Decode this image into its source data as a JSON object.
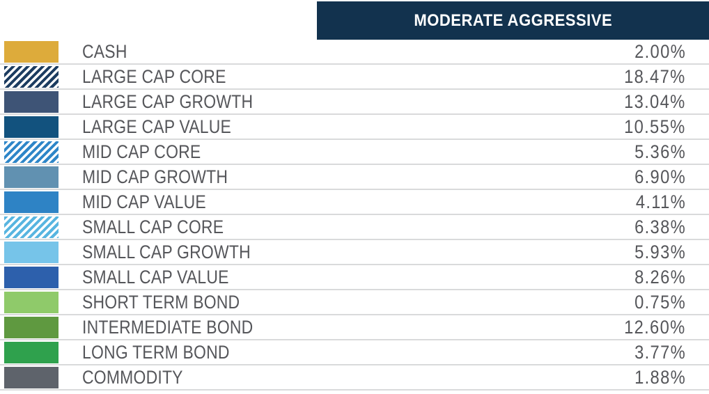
{
  "header": {
    "title": "MODERATE AGGRESSIVE",
    "background_color": "#12324e",
    "text_color": "#ffffff"
  },
  "table": {
    "separator_color": "#d9dadb",
    "text_color": "#55565a",
    "rows": [
      {
        "label": "CASH",
        "value": "2.00%",
        "swatch": "solid",
        "color": "#ddab3b"
      },
      {
        "label": "LARGE CAP CORE",
        "value": "18.47%",
        "swatch": "stripes",
        "color": "#1c3c60"
      },
      {
        "label": "LARGE CAP GROWTH",
        "value": "13.04%",
        "swatch": "solid",
        "color": "#3e5476"
      },
      {
        "label": "LARGE CAP VALUE",
        "value": "10.55%",
        "swatch": "solid",
        "color": "#12527e"
      },
      {
        "label": "MID CAP CORE",
        "value": "5.36%",
        "swatch": "stripes",
        "color": "#2e86c8"
      },
      {
        "label": "MID CAP GROWTH",
        "value": "6.90%",
        "swatch": "solid",
        "color": "#6191b1"
      },
      {
        "label": "MID CAP VALUE",
        "value": "4.11%",
        "swatch": "solid",
        "color": "#2e83c5"
      },
      {
        "label": "SMALL CAP CORE",
        "value": "6.38%",
        "swatch": "stripes",
        "color": "#58b5e0"
      },
      {
        "label": "SMALL CAP GROWTH",
        "value": "5.93%",
        "swatch": "solid",
        "color": "#76c4e9"
      },
      {
        "label": "SMALL CAP VALUE",
        "value": "8.26%",
        "swatch": "solid",
        "color": "#2d60ac"
      },
      {
        "label": "SHORT TERM BOND",
        "value": "0.75%",
        "swatch": "solid",
        "color": "#8fca6a"
      },
      {
        "label": "INTERMEDIATE BOND",
        "value": "12.60%",
        "swatch": "solid",
        "color": "#5f9940"
      },
      {
        "label": "LONG TERM BOND",
        "value": "3.77%",
        "swatch": "solid",
        "color": "#2fa14d"
      },
      {
        "label": "COMMODITY",
        "value": "1.88%",
        "swatch": "solid",
        "color": "#5e636b"
      }
    ]
  },
  "chart_data": {
    "type": "table",
    "title": "MODERATE AGGRESSIVE",
    "categories": [
      "CASH",
      "LARGE CAP CORE",
      "LARGE CAP GROWTH",
      "LARGE CAP VALUE",
      "MID CAP CORE",
      "MID CAP GROWTH",
      "MID CAP VALUE",
      "SMALL CAP CORE",
      "SMALL CAP GROWTH",
      "SMALL CAP VALUE",
      "SHORT TERM BOND",
      "INTERMEDIATE BOND",
      "LONG TERM BOND",
      "COMMODITY"
    ],
    "values": [
      2.0,
      18.47,
      13.04,
      10.55,
      5.36,
      6.9,
      4.11,
      6.38,
      5.93,
      8.26,
      0.75,
      12.6,
      3.77,
      1.88
    ],
    "unit": "%",
    "legend_swatch_patterns": [
      "solid",
      "stripes",
      "solid",
      "solid",
      "stripes",
      "solid",
      "solid",
      "stripes",
      "solid",
      "solid",
      "solid",
      "solid",
      "solid",
      "solid"
    ]
  }
}
